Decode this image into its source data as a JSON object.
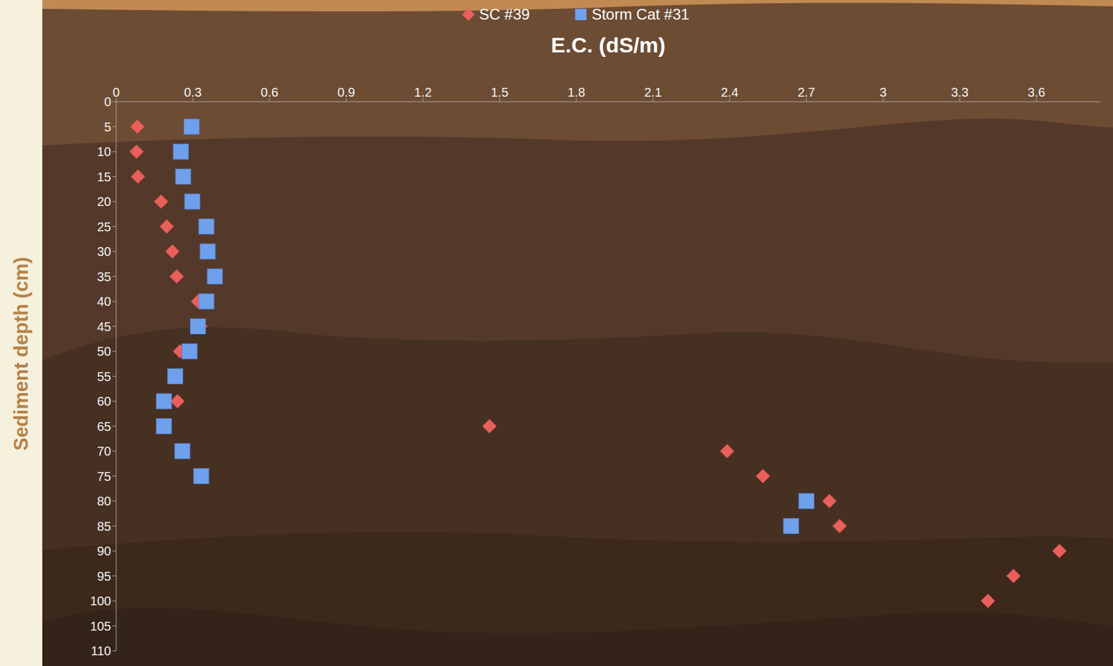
{
  "chart_data": {
    "type": "scatter",
    "title": "E.C. (dS/m)",
    "x_label": "E.C. (dS/m)",
    "y_label": "Sediment depth (cm)",
    "xlim": [
      0,
      3.85
    ],
    "xticks": [
      0,
      0.3,
      0.6,
      0.9,
      1.2,
      1.5,
      1.8,
      2.1,
      2.4,
      2.7,
      3,
      3.3,
      3.6
    ],
    "ylim": [
      110,
      0
    ],
    "yticks": [
      0,
      5,
      10,
      15,
      20,
      25,
      30,
      35,
      40,
      45,
      50,
      55,
      60,
      65,
      70,
      75,
      80,
      85,
      90,
      95,
      100,
      105,
      110
    ],
    "grid": false,
    "legend": "top",
    "series": [
      {
        "name": "SC #39",
        "color": "#e8605c",
        "marker": "diamond",
        "x": [
          0.083,
          0.08,
          0.085,
          0.176,
          0.198,
          0.22,
          0.237,
          0.32,
          0.33,
          0.25,
          0.23,
          0.24,
          1.46,
          2.39,
          2.53,
          2.79,
          2.83,
          3.69,
          3.51,
          3.41
        ],
        "y": [
          5,
          10,
          15,
          20,
          25,
          30,
          35,
          40,
          45,
          50,
          55,
          60,
          65,
          70,
          75,
          80,
          85,
          90,
          95,
          100
        ]
      },
      {
        "name": "Storm Cat #31",
        "color": "#6fa0ec",
        "marker": "square",
        "x": [
          0.295,
          0.253,
          0.262,
          0.298,
          0.353,
          0.358,
          0.386,
          0.353,
          0.32,
          0.287,
          0.231,
          0.187,
          0.187,
          0.259,
          0.333,
          2.7,
          2.64
        ],
        "y": [
          5,
          10,
          15,
          20,
          25,
          30,
          35,
          40,
          45,
          50,
          55,
          60,
          65,
          70,
          75,
          80,
          85
        ]
      }
    ]
  }
}
